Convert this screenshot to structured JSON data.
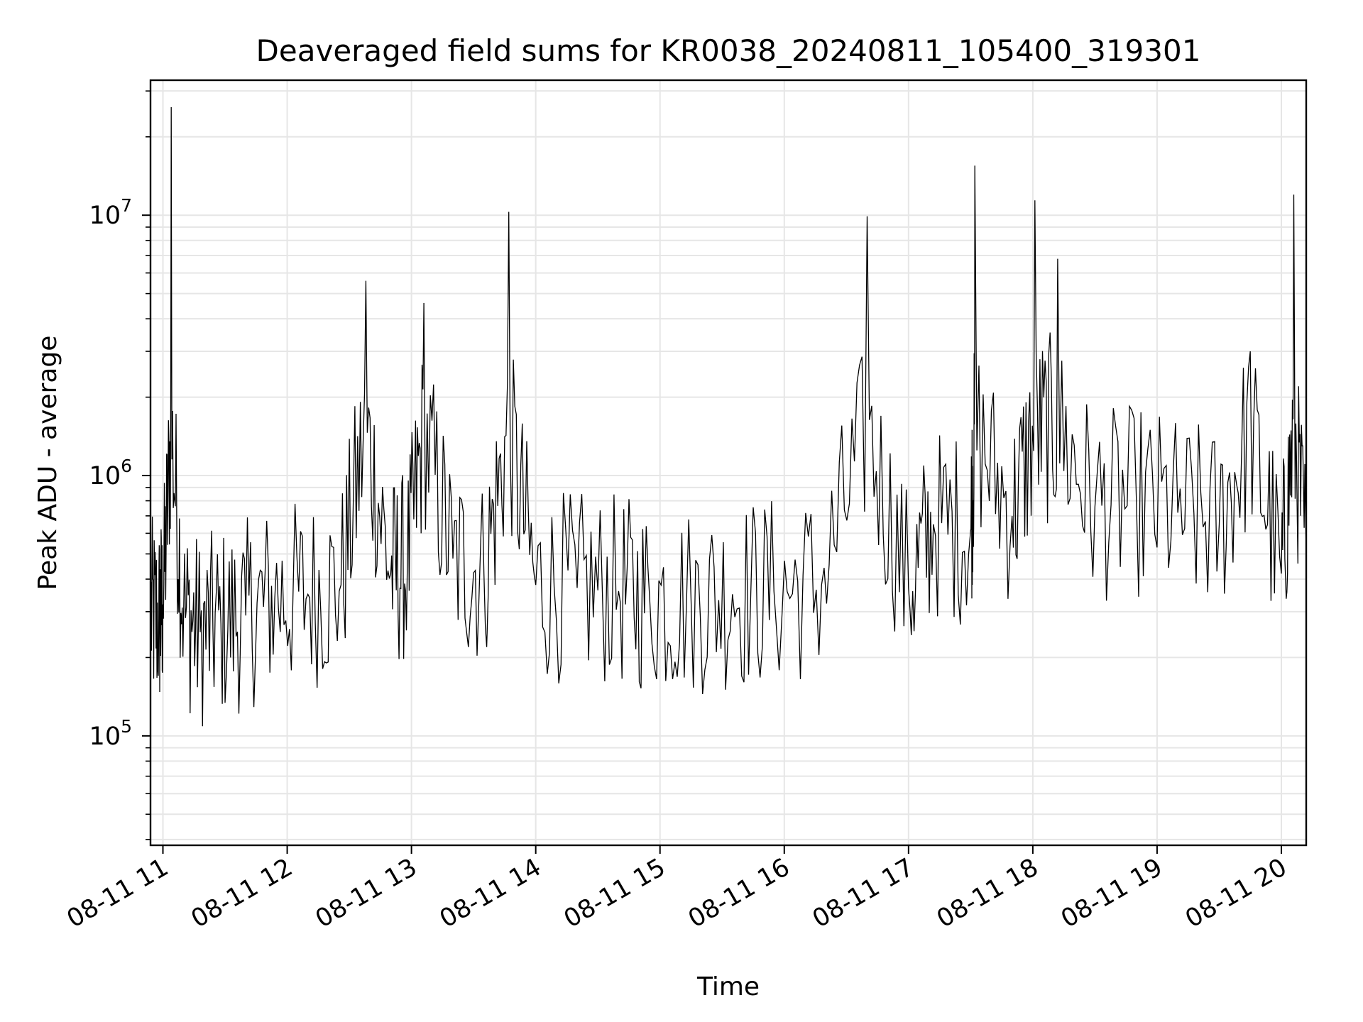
{
  "chart_data": {
    "type": "line",
    "title": "Deaveraged field sums for KR0038_20240811_105400_319301",
    "xlabel": "Time",
    "ylabel": "Peak ADU - average",
    "yscale": "log",
    "ylim": [
      38000,
      33000000
    ],
    "xlim": [
      "2024-08-11T10:54:00",
      "2024-08-11T20:12:00"
    ],
    "x_ticks": [
      {
        "value": "2024-08-11T11:00:00",
        "label": "08-11 11"
      },
      {
        "value": "2024-08-11T12:00:00",
        "label": "08-11 12"
      },
      {
        "value": "2024-08-11T13:00:00",
        "label": "08-11 13"
      },
      {
        "value": "2024-08-11T14:00:00",
        "label": "08-11 14"
      },
      {
        "value": "2024-08-11T15:00:00",
        "label": "08-11 15"
      },
      {
        "value": "2024-08-11T16:00:00",
        "label": "08-11 16"
      },
      {
        "value": "2024-08-11T17:00:00",
        "label": "08-11 17"
      },
      {
        "value": "2024-08-11T18:00:00",
        "label": "08-11 18"
      },
      {
        "value": "2024-08-11T19:00:00",
        "label": "08-11 19"
      },
      {
        "value": "2024-08-11T20:00:00",
        "label": "08-11 20"
      }
    ],
    "y_ticks": [
      {
        "value": 100000,
        "base": "10",
        "exponent": "5"
      },
      {
        "value": 1000000,
        "base": "10",
        "exponent": "6"
      },
      {
        "value": 10000000,
        "base": "10",
        "exponent": "7"
      }
    ],
    "grid": true,
    "line_color": "#000000",
    "grid_color": "#e6e6e6",
    "series": [
      {
        "x": [
          "2024-08-11T10:54:00",
          "2024-08-11T10:58:00",
          "2024-08-11T11:00:00",
          "2024-08-11T11:04:00",
          "2024-08-11T11:10:00",
          "2024-08-11T11:18:00",
          "2024-08-11T11:28:00",
          "2024-08-11T11:40:00",
          "2024-08-11T11:54:00",
          "2024-08-11T12:10:00",
          "2024-08-11T12:26:00",
          "2024-08-11T12:38:00",
          "2024-08-11T12:50:00",
          "2024-08-11T12:58:00",
          "2024-08-11T13:06:00",
          "2024-08-11T13:20:00",
          "2024-08-11T13:35:00",
          "2024-08-11T13:47:00",
          "2024-08-11T14:00:00",
          "2024-08-11T14:20:00",
          "2024-08-11T14:40:00",
          "2024-08-11T14:55:00",
          "2024-08-11T15:15:00",
          "2024-08-11T15:35:00",
          "2024-08-11T15:55:00",
          "2024-08-11T16:18:00",
          "2024-08-11T16:40:00",
          "2024-08-11T17:00:00",
          "2024-08-11T17:12:00",
          "2024-08-11T17:30:00",
          "2024-08-11T17:32:00",
          "2024-08-11T17:50:00",
          "2024-08-11T18:01:00",
          "2024-08-11T18:12:00",
          "2024-08-11T18:30:00",
          "2024-08-11T18:50:00",
          "2024-08-11T19:10:00",
          "2024-08-11T19:30:00",
          "2024-08-11T19:45:00",
          "2024-08-11T20:00:00",
          "2024-08-11T20:06:00",
          "2024-08-11T20:12:00"
        ],
        "y": [
          300000,
          280000,
          320000,
          26000000,
          300000,
          250000,
          270000,
          290000,
          340000,
          350000,
          380000,
          5600000,
          420000,
          450000,
          4600000,
          480000,
          420000,
          10300000,
          380000,
          370000,
          360000,
          340000,
          330000,
          350000,
          360000,
          380000,
          9900000,
          370000,
          650000,
          620000,
          15500000,
          700000,
          11400000,
          6800000,
          760000,
          800000,
          720000,
          650000,
          3000000,
          420000,
          12000000,
          500000
        ]
      }
    ]
  }
}
